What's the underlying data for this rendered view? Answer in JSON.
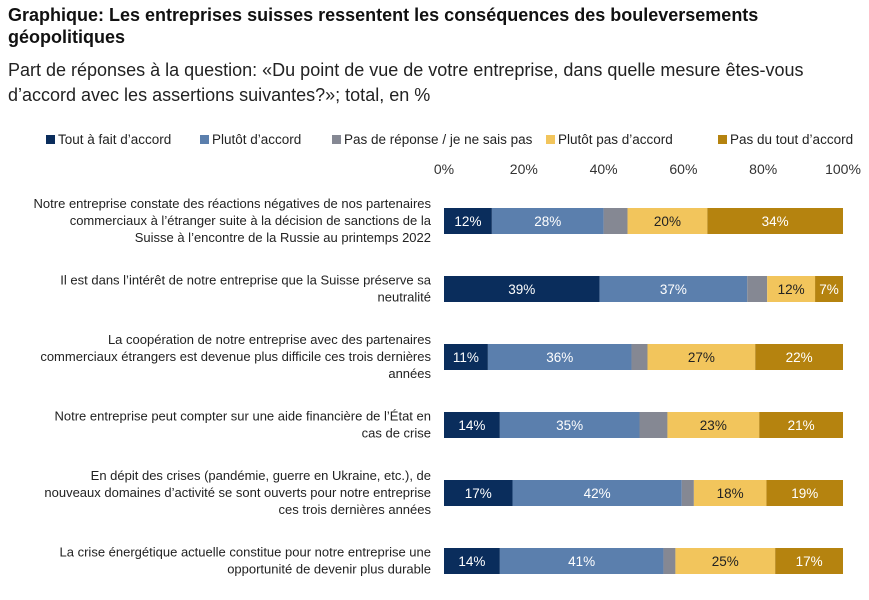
{
  "title": "Graphique: Les entreprises suisses ressentent les conséquences des bouleversements géopolitiques",
  "subtitle": "Part de réponses à la question: «Du point de vue de votre entreprise, dans quelle mesure êtes-vous d’accord avec les assertions suivantes?»; total, en %",
  "chart_data": {
    "type": "bar",
    "orientation": "horizontal",
    "stacked": true,
    "xlim": [
      0,
      100
    ],
    "xticks": [
      "0%",
      "20%",
      "40%",
      "60%",
      "80%",
      "100%"
    ],
    "grid": false,
    "legend_position": "top",
    "categories": [
      [
        "Notre entreprise constate des réactions négatives de nos partenaires",
        "commerciaux à l’étranger suite à la décision de sanctions de la",
        "Suisse à l’encontre de la Russie au printemps 2022"
      ],
      [
        "Il est dans l’intérêt de notre entreprise que la Suisse préserve sa",
        "neutralité"
      ],
      [
        "La coopération de notre entreprise avec des partenaires",
        "commerciaux étrangers est devenue plus difficile ces trois dernières",
        "années"
      ],
      [
        "Notre entreprise peut compter sur une aide financière de l’État en",
        "cas de crise"
      ],
      [
        "En dépit des crises (pandémie, guerre en Ukraine, etc.), de",
        "nouveaux domaines d’activité se sont ouverts pour notre entreprise",
        "ces trois dernières années"
      ],
      [
        "La crise énergétique actuelle constitue pour notre entreprise une",
        "opportunité de devenir plus durable"
      ]
    ],
    "series": [
      {
        "name": "Tout à fait d’accord",
        "color": "#0a2d5c",
        "label_color": "#ffffff",
        "values": [
          12,
          39,
          11,
          14,
          17,
          14
        ],
        "labels": [
          "12%",
          "39%",
          "11%",
          "14%",
          "17%",
          "14%"
        ]
      },
      {
        "name": "Plutôt d’accord",
        "color": "#5b7fad",
        "label_color": "#ffffff",
        "values": [
          28,
          37,
          36,
          35,
          42,
          41
        ],
        "labels": [
          "28%",
          "37%",
          "36%",
          "35%",
          "42%",
          "41%"
        ]
      },
      {
        "name": "Pas de réponse / je ne sais pas",
        "color": "#858893",
        "label_color": "#ffffff",
        "values": [
          6,
          5,
          4,
          7,
          3,
          3
        ],
        "labels": [
          "",
          "",
          "",
          "",
          "",
          ""
        ]
      },
      {
        "name": "Plutôt pas d’accord",
        "color": "#f2c55c",
        "label_color": "#222222",
        "values": [
          20,
          12,
          27,
          23,
          18,
          25
        ],
        "labels": [
          "20%",
          "12%",
          "27%",
          "23%",
          "18%",
          "25%"
        ]
      },
      {
        "name": "Pas du tout d’accord",
        "color": "#b5830f",
        "label_color": "#ffffff",
        "values": [
          34,
          7,
          22,
          21,
          19,
          17
        ],
        "labels": [
          "34%",
          "7%",
          "22%",
          "21%",
          "19%",
          "17%"
        ]
      }
    ]
  }
}
